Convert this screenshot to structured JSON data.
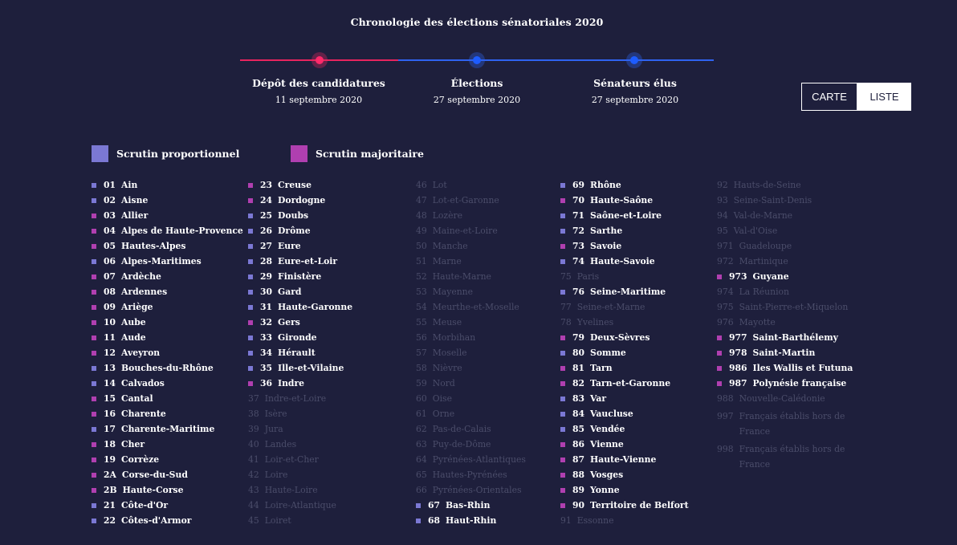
{
  "title": "Chronologie des élections sénatoriales 2020",
  "timeline": [
    {
      "label": "Dépôt des candidatures",
      "date": "11 septembre 2020",
      "color": "#e8245e"
    },
    {
      "label": "Élections",
      "date": "27 septembre 2020",
      "color": "#2f63f0"
    },
    {
      "label": "Sénateurs élus",
      "date": "27 septembre 2020",
      "color": "#2f63f0"
    }
  ],
  "view_toggle": {
    "carte": "CARTE",
    "liste": "LISTE",
    "selected": "LISTE"
  },
  "legend": {
    "proportionnel": {
      "label": "Scrutin proportionnel",
      "color": "#7b78d4"
    },
    "majoritaire": {
      "label": "Scrutin majoritaire",
      "color": "#b03fb0"
    }
  },
  "columns": [
    [
      {
        "code": "01",
        "name": "Ain",
        "type": "p"
      },
      {
        "code": "02",
        "name": "Aisne",
        "type": "p"
      },
      {
        "code": "03",
        "name": "Allier",
        "type": "m"
      },
      {
        "code": "04",
        "name": "Alpes de Haute-Provence",
        "type": "m"
      },
      {
        "code": "05",
        "name": "Hautes-Alpes",
        "type": "m"
      },
      {
        "code": "06",
        "name": "Alpes-Maritimes",
        "type": "p"
      },
      {
        "code": "07",
        "name": "Ardèche",
        "type": "m"
      },
      {
        "code": "08",
        "name": "Ardennes",
        "type": "m"
      },
      {
        "code": "09",
        "name": "Ariège",
        "type": "m"
      },
      {
        "code": "10",
        "name": "Aube",
        "type": "m"
      },
      {
        "code": "11",
        "name": "Aude",
        "type": "m"
      },
      {
        "code": "12",
        "name": "Aveyron",
        "type": "m"
      },
      {
        "code": "13",
        "name": "Bouches-du-Rhône",
        "type": "p"
      },
      {
        "code": "14",
        "name": "Calvados",
        "type": "p"
      },
      {
        "code": "15",
        "name": "Cantal",
        "type": "m"
      },
      {
        "code": "16",
        "name": "Charente",
        "type": "m"
      },
      {
        "code": "17",
        "name": "Charente-Maritime",
        "type": "p"
      },
      {
        "code": "18",
        "name": "Cher",
        "type": "m"
      },
      {
        "code": "19",
        "name": "Corrèze",
        "type": "m"
      },
      {
        "code": "2A",
        "name": "Corse-du-Sud",
        "type": "m"
      },
      {
        "code": "2B",
        "name": "Haute-Corse",
        "type": "m"
      },
      {
        "code": "21",
        "name": "Côte-d'Or",
        "type": "p"
      },
      {
        "code": "22",
        "name": "Côtes-d'Armor",
        "type": "p"
      }
    ],
    [
      {
        "code": "23",
        "name": "Creuse",
        "type": "m"
      },
      {
        "code": "24",
        "name": "Dordogne",
        "type": "m"
      },
      {
        "code": "25",
        "name": "Doubs",
        "type": "p"
      },
      {
        "code": "26",
        "name": "Drôme",
        "type": "p"
      },
      {
        "code": "27",
        "name": "Eure",
        "type": "p"
      },
      {
        "code": "28",
        "name": "Eure-et-Loir",
        "type": "p"
      },
      {
        "code": "29",
        "name": "Finistère",
        "type": "p"
      },
      {
        "code": "30",
        "name": "Gard",
        "type": "p"
      },
      {
        "code": "31",
        "name": "Haute-Garonne",
        "type": "p"
      },
      {
        "code": "32",
        "name": "Gers",
        "type": "m"
      },
      {
        "code": "33",
        "name": "Gironde",
        "type": "p"
      },
      {
        "code": "34",
        "name": "Hérault",
        "type": "p"
      },
      {
        "code": "35",
        "name": "Ille-et-Vilaine",
        "type": "p"
      },
      {
        "code": "36",
        "name": "Indre",
        "type": "m"
      },
      {
        "code": "37",
        "name": "Indre-et-Loire",
        "type": "none"
      },
      {
        "code": "38",
        "name": "Isère",
        "type": "none"
      },
      {
        "code": "39",
        "name": "Jura",
        "type": "none"
      },
      {
        "code": "40",
        "name": "Landes",
        "type": "none"
      },
      {
        "code": "41",
        "name": "Loir-et-Cher",
        "type": "none"
      },
      {
        "code": "42",
        "name": "Loire",
        "type": "none"
      },
      {
        "code": "43",
        "name": "Haute-Loire",
        "type": "none"
      },
      {
        "code": "44",
        "name": "Loire-Atlantique",
        "type": "none"
      },
      {
        "code": "45",
        "name": "Loiret",
        "type": "none"
      }
    ],
    [
      {
        "code": "46",
        "name": "Lot",
        "type": "none"
      },
      {
        "code": "47",
        "name": "Lot-et-Garonne",
        "type": "none"
      },
      {
        "code": "48",
        "name": "Lozère",
        "type": "none"
      },
      {
        "code": "49",
        "name": "Maine-et-Loire",
        "type": "none"
      },
      {
        "code": "50",
        "name": "Manche",
        "type": "none"
      },
      {
        "code": "51",
        "name": "Marne",
        "type": "none"
      },
      {
        "code": "52",
        "name": "Haute-Marne",
        "type": "none"
      },
      {
        "code": "53",
        "name": "Mayenne",
        "type": "none"
      },
      {
        "code": "54",
        "name": "Meurthe-et-Moselle",
        "type": "none"
      },
      {
        "code": "55",
        "name": "Meuse",
        "type": "none"
      },
      {
        "code": "56",
        "name": "Morbihan",
        "type": "none"
      },
      {
        "code": "57",
        "name": "Moselle",
        "type": "none"
      },
      {
        "code": "58",
        "name": "Nièvre",
        "type": "none"
      },
      {
        "code": "59",
        "name": "Nord",
        "type": "none"
      },
      {
        "code": "60",
        "name": "Oise",
        "type": "none"
      },
      {
        "code": "61",
        "name": "Orne",
        "type": "none"
      },
      {
        "code": "62",
        "name": "Pas-de-Calais",
        "type": "none"
      },
      {
        "code": "63",
        "name": "Puy-de-Dôme",
        "type": "none"
      },
      {
        "code": "64",
        "name": "Pyrénées-Atlantiques",
        "type": "none"
      },
      {
        "code": "65",
        "name": "Hautes-Pyrénées",
        "type": "none"
      },
      {
        "code": "66",
        "name": "Pyrénées-Orientales",
        "type": "none"
      },
      {
        "code": "67",
        "name": "Bas-Rhin",
        "type": "p"
      },
      {
        "code": "68",
        "name": "Haut-Rhin",
        "type": "p"
      }
    ],
    [
      {
        "code": "69",
        "name": "Rhône",
        "type": "p"
      },
      {
        "code": "70",
        "name": "Haute-Saône",
        "type": "m"
      },
      {
        "code": "71",
        "name": "Saône-et-Loire",
        "type": "p"
      },
      {
        "code": "72",
        "name": "Sarthe",
        "type": "p"
      },
      {
        "code": "73",
        "name": "Savoie",
        "type": "m"
      },
      {
        "code": "74",
        "name": "Haute-Savoie",
        "type": "p"
      },
      {
        "code": "75",
        "name": "Paris",
        "type": "none"
      },
      {
        "code": "76",
        "name": "Seine-Maritime",
        "type": "p"
      },
      {
        "code": "77",
        "name": "Seine-et-Marne",
        "type": "none"
      },
      {
        "code": "78",
        "name": "Yvelines",
        "type": "none"
      },
      {
        "code": "79",
        "name": "Deux-Sèvres",
        "type": "m"
      },
      {
        "code": "80",
        "name": "Somme",
        "type": "p"
      },
      {
        "code": "81",
        "name": "Tarn",
        "type": "m"
      },
      {
        "code": "82",
        "name": "Tarn-et-Garonne",
        "type": "m"
      },
      {
        "code": "83",
        "name": "Var",
        "type": "p"
      },
      {
        "code": "84",
        "name": "Vaucluse",
        "type": "p"
      },
      {
        "code": "85",
        "name": "Vendée",
        "type": "p"
      },
      {
        "code": "86",
        "name": "Vienne",
        "type": "m"
      },
      {
        "code": "87",
        "name": "Haute-Vienne",
        "type": "m"
      },
      {
        "code": "88",
        "name": "Vosges",
        "type": "m"
      },
      {
        "code": "89",
        "name": "Yonne",
        "type": "m"
      },
      {
        "code": "90",
        "name": "Territoire de Belfort",
        "type": "m"
      },
      {
        "code": "91",
        "name": "Essonne",
        "type": "none"
      }
    ],
    [
      {
        "code": "92",
        "name": "Hauts-de-Seine",
        "type": "none"
      },
      {
        "code": "93",
        "name": "Seine-Saint-Denis",
        "type": "none"
      },
      {
        "code": "94",
        "name": "Val-de-Marne",
        "type": "none"
      },
      {
        "code": "95",
        "name": "Val-d'Oise",
        "type": "none"
      },
      {
        "code": "971",
        "name": "Guadeloupe",
        "type": "none"
      },
      {
        "code": "972",
        "name": "Martinique",
        "type": "none"
      },
      {
        "code": "973",
        "name": "Guyane",
        "type": "m"
      },
      {
        "code": "974",
        "name": "La Réunion",
        "type": "none"
      },
      {
        "code": "975",
        "name": "Saint-Pierre-et-Miquelon",
        "type": "none"
      },
      {
        "code": "976",
        "name": "Mayotte",
        "type": "none"
      },
      {
        "code": "977",
        "name": "Saint-Barthélemy",
        "type": "m"
      },
      {
        "code": "978",
        "name": "Saint-Martin",
        "type": "m"
      },
      {
        "code": "986",
        "name": "Iles Wallis et Futuna",
        "type": "m"
      },
      {
        "code": "987",
        "name": "Polynésie française",
        "type": "m"
      },
      {
        "code": "988",
        "name": "Nouvelle-Calédonie",
        "type": "none"
      },
      {
        "code": "997",
        "name": "Français établis hors de France",
        "type": "none"
      },
      {
        "code": "998",
        "name": "Français établis hors de France",
        "type": "none"
      }
    ]
  ]
}
